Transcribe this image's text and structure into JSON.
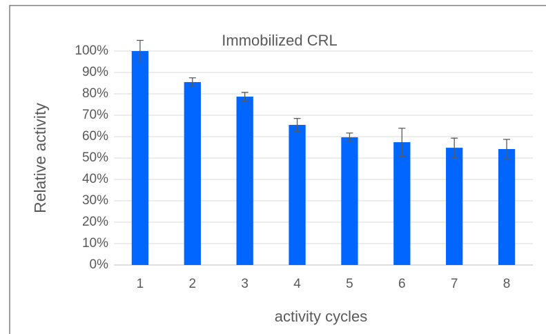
{
  "chart_data": {
    "type": "bar",
    "title": "Immobilized CRL",
    "xlabel": "activity cycles",
    "ylabel": "Relative activity",
    "categories": [
      "1",
      "2",
      "3",
      "4",
      "5",
      "6",
      "7",
      "8"
    ],
    "values": [
      100,
      85.5,
      78.7,
      65.5,
      59.7,
      57.4,
      54.8,
      54.2
    ],
    "errors": [
      5,
      2,
      2,
      3,
      2,
      6.5,
      4.5,
      4.5
    ],
    "color": "#0066ff",
    "ylim": [
      0,
      100
    ],
    "yticks": [
      {
        "value": 0,
        "label": "0%"
      },
      {
        "value": 10,
        "label": "10%"
      },
      {
        "value": 20,
        "label": "20%"
      },
      {
        "value": 30,
        "label": "30%"
      },
      {
        "value": 40,
        "label": "40%"
      },
      {
        "value": 50,
        "label": "50%"
      },
      {
        "value": 60,
        "label": "60%"
      },
      {
        "value": 70,
        "label": "70%"
      },
      {
        "value": 80,
        "label": "80%"
      },
      {
        "value": 90,
        "label": "90%"
      },
      {
        "value": 100,
        "label": "100%"
      }
    ],
    "grid": true
  }
}
